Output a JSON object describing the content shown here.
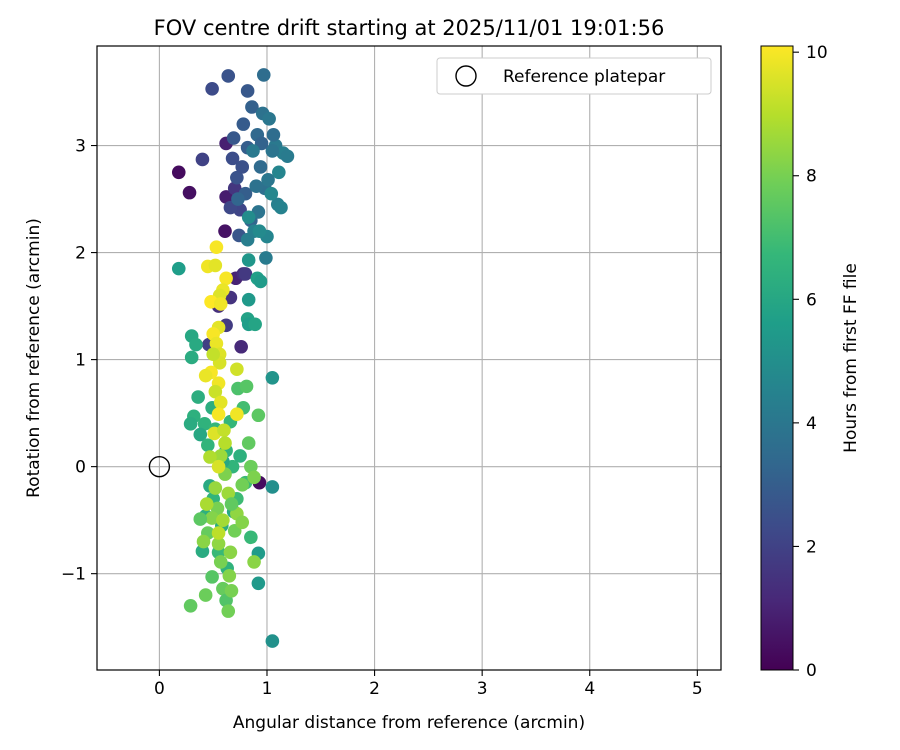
{
  "chart_data": {
    "type": "scatter",
    "title": "FOV centre drift starting at 2025/11/01 19:01:56",
    "xlabel": "Angular distance from reference (arcmin)",
    "ylabel": "Rotation from reference (arcmin)",
    "xlim": [
      -0.58,
      5.22
    ],
    "ylim": [
      -1.9,
      3.93
    ],
    "xticks": [
      0,
      1,
      2,
      3,
      4,
      5
    ],
    "yticks": [
      -1,
      0,
      1,
      2,
      3
    ],
    "xtick_labels": [
      "0",
      "1",
      "2",
      "3",
      "4",
      "5"
    ],
    "ytick_labels": [
      "−1",
      "0",
      "1",
      "2",
      "3"
    ],
    "grid": true,
    "legend": {
      "position": "top-right",
      "label": "Reference platepar"
    },
    "reference_point": {
      "x": 0,
      "y": 0
    },
    "colorbar": {
      "label": "Hours from first FF file",
      "range": [
        0,
        10.1
      ],
      "ticks": [
        0,
        2,
        4,
        6,
        8,
        10
      ],
      "tick_labels": [
        "0",
        "2",
        "4",
        "6",
        "8",
        "10"
      ],
      "colormap": "viridis"
    },
    "colormap_stops": [
      "#440154",
      "#482878",
      "#3e4989",
      "#31688e",
      "#26828e",
      "#1f9e89",
      "#35b779",
      "#6ece58",
      "#b5de2b",
      "#fde725"
    ],
    "points": [
      {
        "x": 0.18,
        "y": 2.75,
        "h": 0.3
      },
      {
        "x": 0.28,
        "y": 2.56,
        "h": 0.4
      },
      {
        "x": 0.61,
        "y": 2.2,
        "h": 0.5
      },
      {
        "x": 0.62,
        "y": 2.52,
        "h": 0.8
      },
      {
        "x": 0.62,
        "y": 3.02,
        "h": 0.9
      },
      {
        "x": 0.93,
        "y": -0.15,
        "h": 0.3
      },
      {
        "x": 0.76,
        "y": 1.12,
        "h": 1.2
      },
      {
        "x": 0.71,
        "y": 1.76,
        "h": 1.0
      },
      {
        "x": 0.55,
        "y": 1.5,
        "h": 1.4
      },
      {
        "x": 0.78,
        "y": 1.8,
        "h": 1.3
      },
      {
        "x": 0.66,
        "y": 1.58,
        "h": 1.5
      },
      {
        "x": 0.62,
        "y": 1.32,
        "h": 1.8
      },
      {
        "x": 0.46,
        "y": 1.14,
        "h": 1.9
      },
      {
        "x": 0.8,
        "y": 1.8,
        "h": 1.7
      },
      {
        "x": 0.4,
        "y": 2.87,
        "h": 2.0
      },
      {
        "x": 0.49,
        "y": 3.53,
        "h": 2.3
      },
      {
        "x": 0.64,
        "y": 3.65,
        "h": 2.6
      },
      {
        "x": 0.82,
        "y": 3.51,
        "h": 2.8
      },
      {
        "x": 0.7,
        "y": 2.6,
        "h": 1.6
      },
      {
        "x": 0.75,
        "y": 2.4,
        "h": 2.1
      },
      {
        "x": 0.68,
        "y": 2.88,
        "h": 2.4
      },
      {
        "x": 0.72,
        "y": 2.7,
        "h": 2.6
      },
      {
        "x": 0.78,
        "y": 3.2,
        "h": 2.9
      },
      {
        "x": 0.66,
        "y": 2.42,
        "h": 2.2
      },
      {
        "x": 0.82,
        "y": 2.98,
        "h": 3.0
      },
      {
        "x": 0.74,
        "y": 2.16,
        "h": 2.7
      },
      {
        "x": 0.86,
        "y": 3.36,
        "h": 3.1
      },
      {
        "x": 0.8,
        "y": 2.55,
        "h": 3.0
      },
      {
        "x": 0.91,
        "y": 3.1,
        "h": 3.4
      },
      {
        "x": 0.69,
        "y": 3.07,
        "h": 2.8
      },
      {
        "x": 0.85,
        "y": 2.3,
        "h": 3.3
      },
      {
        "x": 0.77,
        "y": 2.8,
        "h": 2.5
      },
      {
        "x": 0.97,
        "y": 3.66,
        "h": 3.6
      },
      {
        "x": 0.96,
        "y": 3.3,
        "h": 3.8
      },
      {
        "x": 1.02,
        "y": 3.25,
        "h": 4.0
      },
      {
        "x": 1.08,
        "y": 3.0,
        "h": 4.1
      },
      {
        "x": 1.15,
        "y": 2.93,
        "h": 4.3
      },
      {
        "x": 1.19,
        "y": 2.9,
        "h": 4.2
      },
      {
        "x": 1.05,
        "y": 2.95,
        "h": 3.9
      },
      {
        "x": 0.98,
        "y": 2.6,
        "h": 3.7
      },
      {
        "x": 1.1,
        "y": 2.45,
        "h": 4.4
      },
      {
        "x": 1.13,
        "y": 2.42,
        "h": 4.5
      },
      {
        "x": 1.01,
        "y": 2.68,
        "h": 4.0
      },
      {
        "x": 0.94,
        "y": 2.8,
        "h": 3.5
      },
      {
        "x": 0.92,
        "y": 2.38,
        "h": 3.9
      },
      {
        "x": 1.0,
        "y": 2.15,
        "h": 4.6
      },
      {
        "x": 0.88,
        "y": 2.2,
        "h": 4.4
      },
      {
        "x": 0.82,
        "y": 2.12,
        "h": 4.3
      },
      {
        "x": 0.99,
        "y": 1.95,
        "h": 4.2
      },
      {
        "x": 0.95,
        "y": 3.02,
        "h": 3.2
      },
      {
        "x": 1.06,
        "y": 3.1,
        "h": 3.6
      },
      {
        "x": 0.9,
        "y": 2.62,
        "h": 3.8
      },
      {
        "x": 0.87,
        "y": 2.95,
        "h": 4.1
      },
      {
        "x": 1.11,
        "y": 2.75,
        "h": 4.6
      },
      {
        "x": 0.93,
        "y": 2.2,
        "h": 4.8
      },
      {
        "x": 0.83,
        "y": 2.33,
        "h": 4.9
      },
      {
        "x": 0.73,
        "y": 2.5,
        "h": 3.3
      },
      {
        "x": 1.04,
        "y": 2.55,
        "h": 4.7
      },
      {
        "x": 0.18,
        "y": 1.85,
        "h": 5.6
      },
      {
        "x": 0.83,
        "y": 1.93,
        "h": 5.3
      },
      {
        "x": 0.91,
        "y": 1.76,
        "h": 5.7
      },
      {
        "x": 0.94,
        "y": 1.73,
        "h": 5.5
      },
      {
        "x": 0.83,
        "y": 1.56,
        "h": 5.4
      },
      {
        "x": 0.82,
        "y": 1.38,
        "h": 5.8
      },
      {
        "x": 0.83,
        "y": 1.33,
        "h": 5.6
      },
      {
        "x": 0.89,
        "y": 1.33,
        "h": 5.9
      },
      {
        "x": 1.05,
        "y": 0.83,
        "h": 5.2
      },
      {
        "x": 1.05,
        "y": -0.19,
        "h": 5.0
      },
      {
        "x": 1.05,
        "y": -1.63,
        "h": 5.1
      },
      {
        "x": 0.92,
        "y": -1.09,
        "h": 5.4
      },
      {
        "x": 0.92,
        "y": -0.81,
        "h": 5.5
      },
      {
        "x": 0.3,
        "y": 1.22,
        "h": 6.0
      },
      {
        "x": 0.34,
        "y": 1.14,
        "h": 6.1
      },
      {
        "x": 0.3,
        "y": 1.02,
        "h": 6.2
      },
      {
        "x": 0.36,
        "y": 0.65,
        "h": 6.3
      },
      {
        "x": 0.32,
        "y": 0.47,
        "h": 6.4
      },
      {
        "x": 0.29,
        "y": 0.4,
        "h": 6.2
      },
      {
        "x": 0.42,
        "y": 0.4,
        "h": 6.5
      },
      {
        "x": 0.38,
        "y": 0.3,
        "h": 6.0
      },
      {
        "x": 0.45,
        "y": 0.2,
        "h": 6.6
      },
      {
        "x": 0.49,
        "y": 0.55,
        "h": 6.3
      },
      {
        "x": 0.52,
        "y": 0.35,
        "h": 6.7
      },
      {
        "x": 0.47,
        "y": -0.18,
        "h": 6.1
      },
      {
        "x": 0.43,
        "y": -0.46,
        "h": 6.4
      },
      {
        "x": 0.4,
        "y": -0.79,
        "h": 6.2
      },
      {
        "x": 0.55,
        "y": -0.8,
        "h": 6.8
      },
      {
        "x": 0.62,
        "y": 0.15,
        "h": 6.5
      },
      {
        "x": 0.68,
        "y": 0.0,
        "h": 6.6
      },
      {
        "x": 0.72,
        "y": -0.3,
        "h": 6.9
      },
      {
        "x": 0.58,
        "y": -0.55,
        "h": 6.3
      },
      {
        "x": 0.66,
        "y": 0.42,
        "h": 6.7
      },
      {
        "x": 0.75,
        "y": 0.1,
        "h": 6.4
      },
      {
        "x": 0.78,
        "y": 0.55,
        "h": 7.0
      },
      {
        "x": 0.85,
        "y": -0.66,
        "h": 6.8
      },
      {
        "x": 0.63,
        "y": -0.95,
        "h": 6.5
      },
      {
        "x": 0.59,
        "y": 0.05,
        "h": 6.0
      },
      {
        "x": 0.5,
        "y": -0.3,
        "h": 6.6
      },
      {
        "x": 0.69,
        "y": -0.42,
        "h": 6.1
      },
      {
        "x": 0.8,
        "y": -0.15,
        "h": 6.9
      },
      {
        "x": 0.29,
        "y": -1.3,
        "h": 7.6
      },
      {
        "x": 0.43,
        "y": -1.2,
        "h": 7.8
      },
      {
        "x": 0.49,
        "y": -1.03,
        "h": 7.4
      },
      {
        "x": 0.59,
        "y": -1.14,
        "h": 7.7
      },
      {
        "x": 0.62,
        "y": -1.25,
        "h": 7.3
      },
      {
        "x": 0.64,
        "y": -1.35,
        "h": 7.9
      },
      {
        "x": 0.67,
        "y": -1.16,
        "h": 8.0
      },
      {
        "x": 0.65,
        "y": -1.02,
        "h": 8.2
      },
      {
        "x": 0.88,
        "y": -0.89,
        "h": 8.3
      },
      {
        "x": 0.92,
        "y": 0.48,
        "h": 7.5
      },
      {
        "x": 0.73,
        "y": 0.73,
        "h": 7.2
      },
      {
        "x": 0.81,
        "y": 0.75,
        "h": 7.4
      },
      {
        "x": 0.83,
        "y": 0.22,
        "h": 7.6
      },
      {
        "x": 0.85,
        "y": 0.0,
        "h": 7.8
      },
      {
        "x": 0.88,
        "y": -0.1,
        "h": 8.1
      },
      {
        "x": 0.77,
        "y": -0.17,
        "h": 7.9
      },
      {
        "x": 0.72,
        "y": -0.44,
        "h": 8.4
      },
      {
        "x": 0.54,
        "y": -0.39,
        "h": 8.0
      },
      {
        "x": 0.49,
        "y": -0.48,
        "h": 8.2
      },
      {
        "x": 0.45,
        "y": -0.62,
        "h": 7.7
      },
      {
        "x": 0.41,
        "y": -0.7,
        "h": 8.3
      },
      {
        "x": 0.38,
        "y": -0.49,
        "h": 7.5
      },
      {
        "x": 0.52,
        "y": -0.2,
        "h": 8.5
      },
      {
        "x": 0.57,
        "y": 0.1,
        "h": 8.6
      },
      {
        "x": 0.61,
        "y": -0.07,
        "h": 8.1
      },
      {
        "x": 0.66,
        "y": -0.8,
        "h": 8.3
      },
      {
        "x": 0.7,
        "y": -0.6,
        "h": 7.9
      },
      {
        "x": 0.64,
        "y": -0.25,
        "h": 8.6
      },
      {
        "x": 0.55,
        "y": -0.72,
        "h": 8.4
      },
      {
        "x": 0.59,
        "y": -0.5,
        "h": 8.7
      },
      {
        "x": 0.44,
        "y": -0.35,
        "h": 8.8
      },
      {
        "x": 0.47,
        "y": 0.09,
        "h": 8.9
      },
      {
        "x": 0.67,
        "y": -0.35,
        "h": 7.6
      },
      {
        "x": 0.77,
        "y": -0.52,
        "h": 8.2
      },
      {
        "x": 0.57,
        "y": -0.89,
        "h": 8.0
      },
      {
        "x": 0.53,
        "y": 2.05,
        "h": 10.0
      },
      {
        "x": 0.45,
        "y": 1.87,
        "h": 9.9
      },
      {
        "x": 0.52,
        "y": 1.88,
        "h": 9.7
      },
      {
        "x": 0.62,
        "y": 1.76,
        "h": 10.0
      },
      {
        "x": 0.59,
        "y": 1.65,
        "h": 9.8
      },
      {
        "x": 0.56,
        "y": 1.6,
        "h": 9.6
      },
      {
        "x": 0.48,
        "y": 1.54,
        "h": 10.1
      },
      {
        "x": 0.57,
        "y": 1.52,
        "h": 9.9
      },
      {
        "x": 0.55,
        "y": 1.3,
        "h": 9.7
      },
      {
        "x": 0.5,
        "y": 1.24,
        "h": 10.0
      },
      {
        "x": 0.53,
        "y": 1.15,
        "h": 9.8
      },
      {
        "x": 0.56,
        "y": 1.05,
        "h": 9.6
      },
      {
        "x": 0.56,
        "y": 0.97,
        "h": 9.5
      },
      {
        "x": 0.48,
        "y": 0.88,
        "h": 10.0
      },
      {
        "x": 0.43,
        "y": 0.85,
        "h": 9.8
      },
      {
        "x": 0.55,
        "y": 0.78,
        "h": 9.9
      },
      {
        "x": 0.52,
        "y": 0.7,
        "h": 9.3
      },
      {
        "x": 0.57,
        "y": 0.6,
        "h": 9.7
      },
      {
        "x": 0.55,
        "y": 0.49,
        "h": 10.0
      },
      {
        "x": 0.72,
        "y": 0.91,
        "h": 9.4
      },
      {
        "x": 0.72,
        "y": 0.49,
        "h": 9.9
      },
      {
        "x": 0.51,
        "y": 0.31,
        "h": 9.6
      },
      {
        "x": 0.6,
        "y": 0.34,
        "h": 9.2
      },
      {
        "x": 0.55,
        "y": 0.0,
        "h": 9.5
      },
      {
        "x": 0.55,
        "y": -0.62,
        "h": 9.1
      },
      {
        "x": 0.61,
        "y": 0.22,
        "h": 9.0
      },
      {
        "x": 0.5,
        "y": 1.05,
        "h": 9.2
      }
    ]
  }
}
